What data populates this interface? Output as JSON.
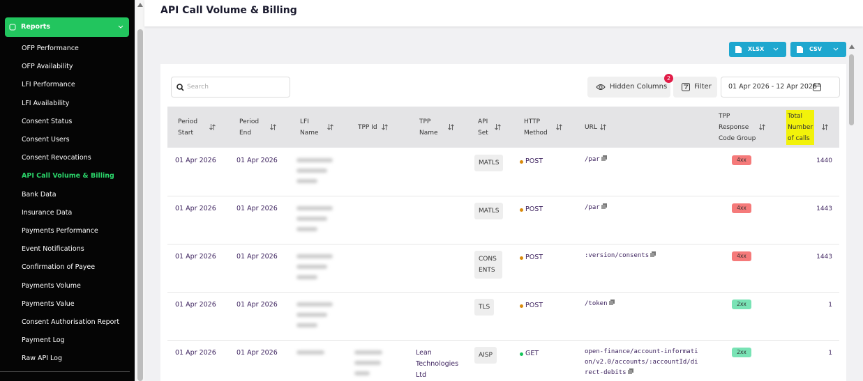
{
  "sidebar": {
    "section": "Reports",
    "items": [
      "OFP Performance",
      "OFP Availability",
      "LFI Performance",
      "LFI Availability",
      "Consent Status",
      "Consent Users",
      "Consent Revocations",
      "API Call Volume & Billing",
      "Bank Data",
      "Insurance Data",
      "Payments Performance",
      "Event Notifications",
      "Confirmation of Payee",
      "Payments Volume",
      "Payments Value",
      "Consent Authorisation Report",
      "Payment Log",
      "Raw API Log"
    ]
  },
  "page": {
    "title": "API Call Volume & Billing",
    "export_buttons": [
      "XLSX",
      "CSV"
    ],
    "search_placeholder": "Search",
    "hidden_columns": {
      "label": "Hidden Columns",
      "count": "2"
    },
    "filter": "Filter",
    "date_range": "01 Apr 2026 - 12 Apr 2026"
  },
  "table": {
    "columns": [
      "Period Start",
      "Period End",
      "LFI Name",
      "TPP Id",
      "TPP Name",
      "API Set",
      "HTTP Method",
      "URL",
      "TPP Response Code Group",
      "Total Number of calls"
    ],
    "rows": [
      [
        "01 Apr 2026",
        "01 Apr 2026",
        null,
        null,
        null,
        "MATLS",
        "POST",
        "/par",
        "4xx",
        1440
      ],
      [
        "01 Apr 2026",
        "01 Apr 2026",
        null,
        null,
        null,
        "MATLS",
        "POST",
        "/par",
        "4xx",
        1443
      ],
      [
        "01 Apr 2026",
        "01 Apr 2026",
        null,
        null,
        null,
        "CONSENTS",
        "POST",
        ":version/consents",
        "4xx",
        1443
      ],
      [
        "01 Apr 2026",
        "01 Apr 2026",
        null,
        null,
        null,
        "TLS",
        "POST",
        "/token",
        "2xx",
        1
      ],
      [
        "01 Apr 2026",
        "01 Apr 2026",
        null,
        null,
        "Lean Technologies Ltd",
        "AISP",
        "GET",
        "open-finance/account-information/v2.0/accounts/:accountId/direct-debits",
        "2xx",
        1
      ]
    ]
  }
}
